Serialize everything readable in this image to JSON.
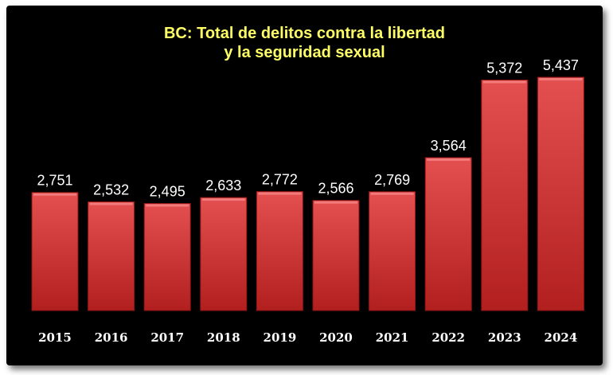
{
  "chart_data": {
    "type": "bar",
    "title_lines": [
      "BC: Total de delitos contra la libertad",
      "y la seguridad sexual"
    ],
    "categories": [
      "2015",
      "2016",
      "2017",
      "2018",
      "2019",
      "2020",
      "2021",
      "2022",
      "2023",
      "2024"
    ],
    "values": [
      2751,
      2532,
      2495,
      2633,
      2772,
      2566,
      2769,
      3564,
      5372,
      5437
    ],
    "value_labels": [
      "2,751",
      "2,532",
      "2,495",
      "2,633",
      "2,772",
      "2,566",
      "2,769",
      "3,564",
      "5,372",
      "5,437"
    ],
    "xlabel": "",
    "ylabel": "",
    "grid": false,
    "legend": "none",
    "colors": {
      "background": "#000000",
      "bar": "#d33a3a",
      "title": "#ffff66",
      "labels": "#ffffff"
    }
  }
}
